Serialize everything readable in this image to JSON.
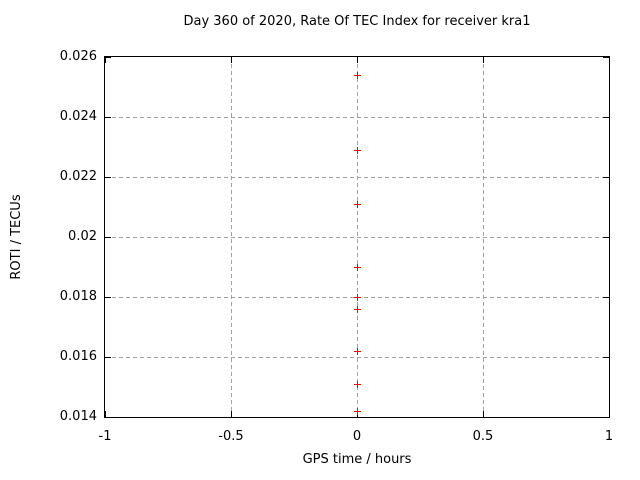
{
  "chart_data": {
    "type": "scatter",
    "title": "Day 360 of 2020, Rate Of TEC Index for receiver kra1",
    "xlabel": "GPS time / hours",
    "ylabel": "ROTI / TECUs",
    "xlim": [
      -1,
      1
    ],
    "ylim": [
      0.014,
      0.026
    ],
    "grid": true,
    "legend": "none",
    "x_ticks": [
      {
        "value": -1,
        "label": "-1"
      },
      {
        "value": -0.5,
        "label": "-0.5"
      },
      {
        "value": 0,
        "label": "0"
      },
      {
        "value": 0.5,
        "label": "0.5"
      },
      {
        "value": 1,
        "label": "1"
      }
    ],
    "y_ticks": [
      {
        "value": 0.014,
        "label": "0.014"
      },
      {
        "value": 0.016,
        "label": "0.016"
      },
      {
        "value": 0.018,
        "label": "0.018"
      },
      {
        "value": 0.02,
        "label": "0.02"
      },
      {
        "value": 0.022,
        "label": "0.022"
      },
      {
        "value": 0.024,
        "label": "0.024"
      },
      {
        "value": 0.026,
        "label": "0.026"
      }
    ],
    "x_grid": [
      -0.5,
      0,
      0.5
    ],
    "y_grid": [
      0.016,
      0.018,
      0.02,
      0.022,
      0.024
    ],
    "series": [
      {
        "marker": "plus",
        "color": "#ff0000",
        "points": [
          {
            "x": 0,
            "y": 0.0254
          },
          {
            "x": 0,
            "y": 0.0229
          },
          {
            "x": 0,
            "y": 0.0211
          },
          {
            "x": 0,
            "y": 0.019
          },
          {
            "x": 0,
            "y": 0.018
          },
          {
            "x": 0,
            "y": 0.0176
          },
          {
            "x": 0,
            "y": 0.0162
          },
          {
            "x": 0,
            "y": 0.0151
          },
          {
            "x": 0,
            "y": 0.0142
          }
        ]
      }
    ]
  },
  "colors": {
    "background": "#ffffff",
    "border": "#000000",
    "grid": "#a0a0a0",
    "text": "#000000",
    "marker": "#ff0000"
  }
}
